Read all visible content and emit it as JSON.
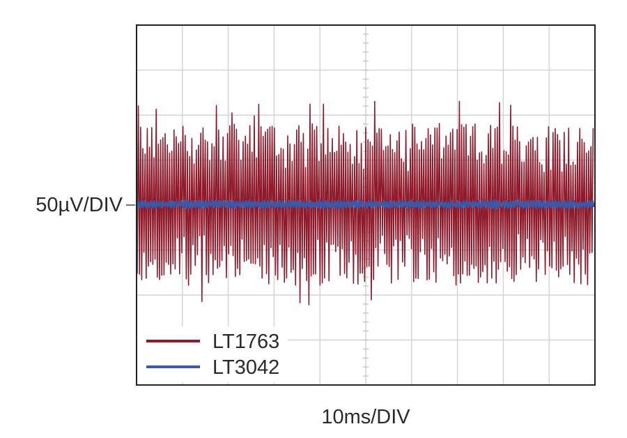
{
  "chart_data": {
    "type": "line",
    "title": "",
    "ylabel": "50µV/DIV",
    "xlabel": "10ms/DIV",
    "grid": true,
    "x_divisions": 10,
    "y_divisions": 8,
    "legend_position": "bottom-left",
    "series": [
      {
        "name": "LT1763",
        "color": "#8e1a2b",
        "amplitude_div": 1.8,
        "peak_div": 2.3
      },
      {
        "name": "LT3042",
        "color": "#3a59a8",
        "amplitude_div": 0.08,
        "peak_div": 0.1
      }
    ]
  }
}
